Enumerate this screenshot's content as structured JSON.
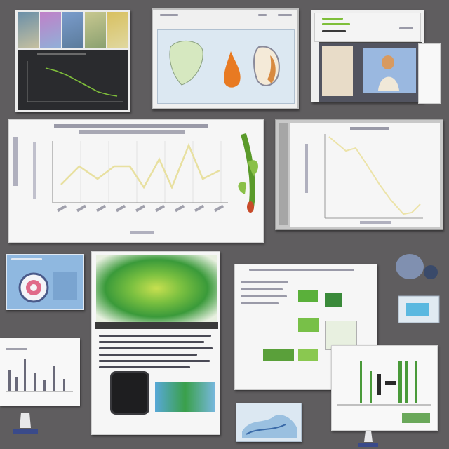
{
  "palette": {
    "wall": "#5f5d5f",
    "paper": "#f4f4f2",
    "dark_panel": "#2a2b2e",
    "green_accent": "#7fbf3a",
    "yellow_line": "#e8e0a0",
    "blue_screen": "#8fb8e0"
  },
  "panels": [
    {
      "id": "dark-line-chart-board",
      "kind": "dark chart with thumbnail strip"
    },
    {
      "id": "anatomy-sheet",
      "kind": "screen with organ illustrations"
    },
    {
      "id": "document-stack",
      "kind": "stacked documents with portrait card"
    },
    {
      "id": "wide-line-chart",
      "kind": "line chart with plant figure"
    },
    {
      "id": "falling-line-chart",
      "kind": "single falling line chart"
    },
    {
      "id": "target-screen",
      "kind": "blue screen with ring graphic"
    },
    {
      "id": "green-cell-poster",
      "kind": "poster with green microscopy image"
    },
    {
      "id": "diagram-sheet",
      "kind": "sheet with green photo tiles"
    },
    {
      "id": "green-bar-board",
      "kind": "green bar sketch"
    },
    {
      "id": "small-bar-board",
      "kind": "small bar sketch"
    },
    {
      "id": "robot-figure",
      "kind": "blue machine graphic"
    },
    {
      "id": "map-card",
      "kind": "small map card"
    }
  ],
  "icons": [
    "monitor-stand-icon",
    "black-device-icon",
    "robot-icon"
  ]
}
